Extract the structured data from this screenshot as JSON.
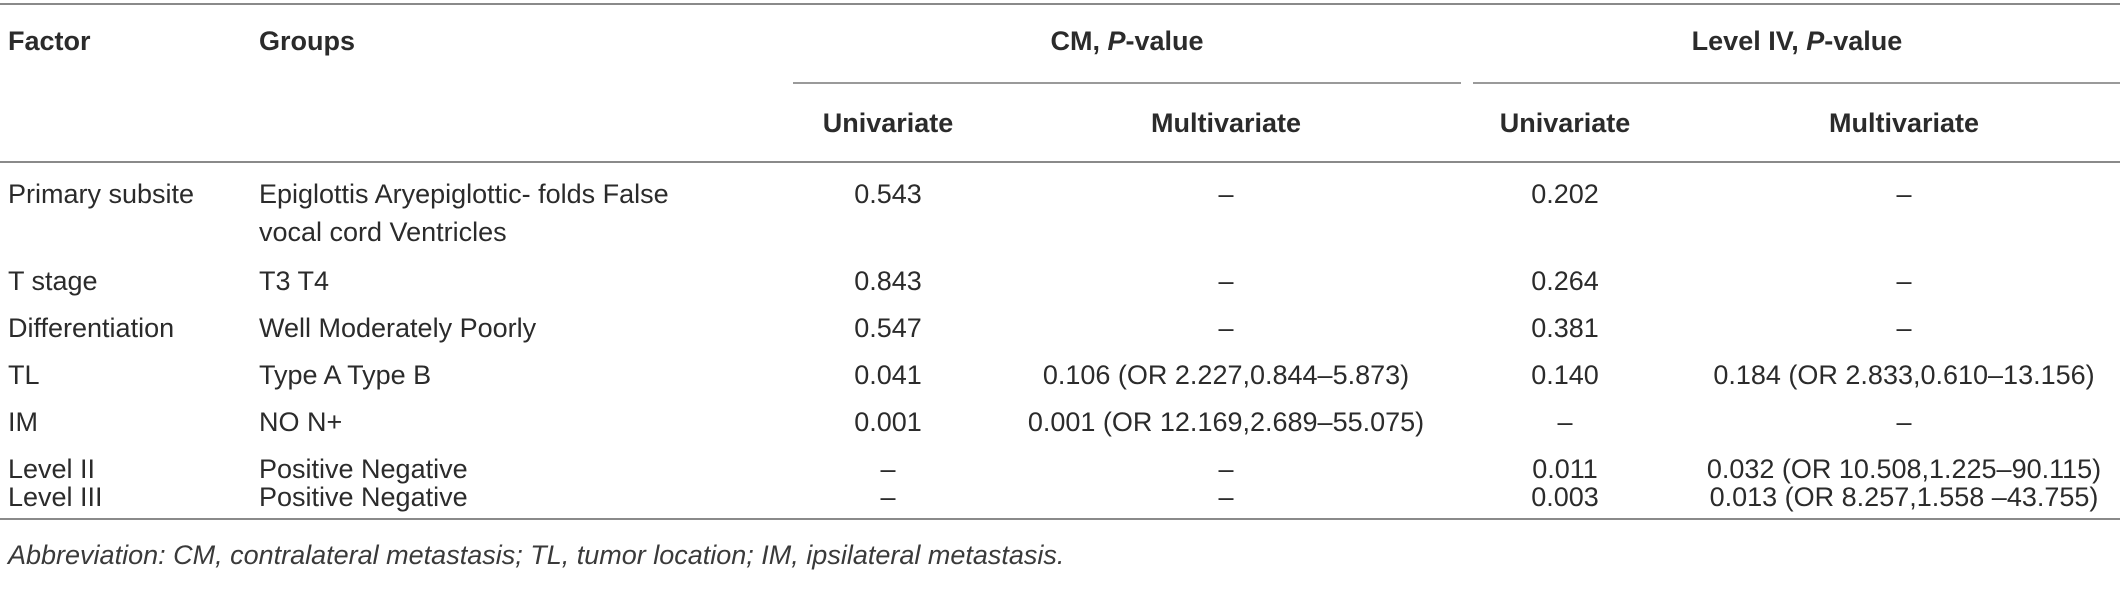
{
  "table": {
    "headers": {
      "factor": "Factor",
      "groups": "Groups",
      "cm_group_prefix": "CM, ",
      "cm_group_p": "P",
      "cm_group_suffix": "-value",
      "level4_group_prefix": "Level IV, ",
      "level4_group_p": "P",
      "level4_group_suffix": "-value",
      "cm_univariate": "Univariate",
      "cm_multivariate": "Multivariate",
      "level4_univariate": "Univariate",
      "level4_multivariate": "Multivariate"
    },
    "rows": [
      {
        "factor": "Primary subsite",
        "groups": "Epiglottis Aryepiglottic- folds False vocal cord Ventricles",
        "cm_uni": "0.543",
        "cm_multi": "–",
        "l4_uni": "0.202",
        "l4_multi": "–"
      },
      {
        "factor": "T stage",
        "groups": "T3 T4",
        "cm_uni": "0.843",
        "cm_multi": "–",
        "l4_uni": "0.264",
        "l4_multi": "–"
      },
      {
        "factor": "Differentiation",
        "groups": "Well Moderately Poorly",
        "cm_uni": "0.547",
        "cm_multi": "–",
        "l4_uni": "0.381",
        "l4_multi": "–"
      },
      {
        "factor": "TL",
        "groups": "Type A Type B",
        "cm_uni": "0.041",
        "cm_multi": "0.106 (OR 2.227,0.844–5.873)",
        "l4_uni": "0.140",
        "l4_multi": "0.184 (OR 2.833,0.610–13.156)"
      },
      {
        "factor": "IM",
        "groups": "NO N+",
        "cm_uni": "0.001",
        "cm_multi": "0.001 (OR 12.169,2.689–55.075)",
        "l4_uni": "–",
        "l4_multi": "–"
      },
      {
        "factor": "Level II",
        "groups": "Positive Negative",
        "cm_uni": "–",
        "cm_multi": "–",
        "l4_uni": "0.011",
        "l4_multi": "0.032 (OR 10.508,1.225–90.115)"
      },
      {
        "factor": "Level III",
        "groups": "Positive Negative",
        "cm_uni": "–",
        "cm_multi": "–",
        "l4_uni": "0.003",
        "l4_multi": "0.013 (OR 8.257,1.558 –43.755)"
      }
    ],
    "footnote": "Abbreviation: CM, contralateral metastasis; TL, tumor location; IM, ipsilateral metastasis."
  }
}
